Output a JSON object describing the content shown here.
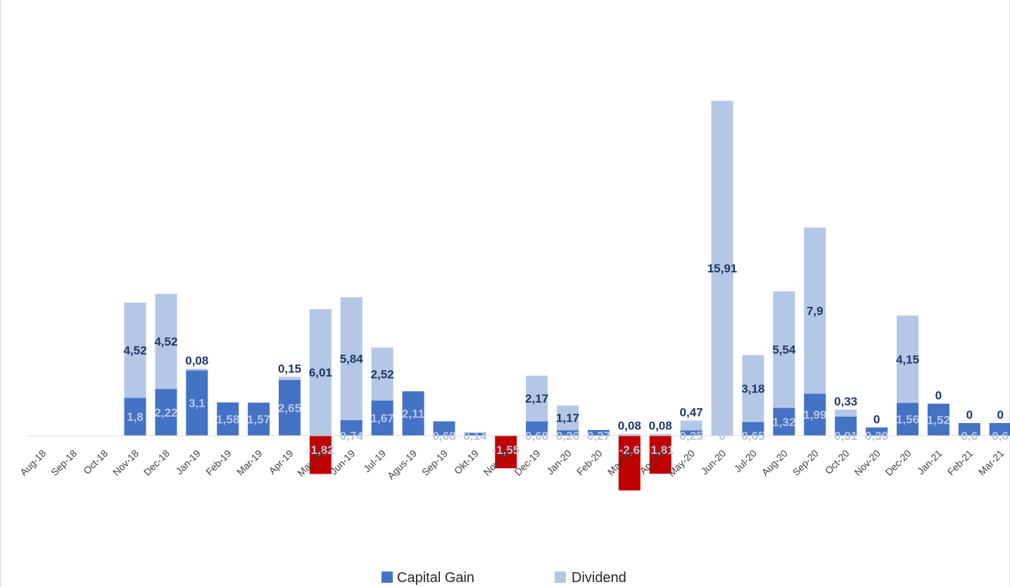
{
  "chart_data": {
    "type": "bar",
    "stacked": true,
    "categories": [
      "Aug-18",
      "Sep-18",
      "Oct-18",
      "Nov-18",
      "Dec-18",
      "Jan-19",
      "Feb-19",
      "Mar-19",
      "Apr-19",
      "May-19",
      "Jun-19",
      "Jul-19",
      "Agus-19",
      "Sep-19",
      "Okt-19",
      "Nov-19",
      "Dec-19",
      "Jan-20",
      "Feb-20",
      "Mar-20",
      "Apr-20",
      "May-20",
      "Jun-20",
      "Jul-20",
      "Aug-20",
      "Sep-20",
      "Oct-20",
      "Nov-20",
      "Dec-20",
      "Jan-21",
      "Feb-21",
      "Mar-21"
    ],
    "series": [
      {
        "name": "Capital Gain",
        "color": "#4472c4",
        "negative_color": "#c00000",
        "values": [
          0,
          0,
          0,
          1.8,
          2.22,
          3.1,
          1.58,
          1.57,
          2.65,
          -1.82,
          0.74,
          1.67,
          2.11,
          0.68,
          0.14,
          -1.55,
          0.68,
          0.26,
          0.27,
          -2.6,
          -1.81,
          0.25,
          0,
          0.65,
          1.32,
          1.99,
          0.91,
          0.39,
          1.56,
          1.52,
          0.6,
          0.6
        ],
        "labels": [
          "",
          "",
          "",
          "1,8",
          "2,22",
          "3,1",
          "1,58",
          "1,57",
          "2,65",
          "-1,82",
          "0,74",
          "1,67",
          "2,11",
          "0,68",
          "0,14",
          "-1,55",
          "0,68",
          "0,26",
          "0,27",
          "-2,6",
          "-1,81",
          "0,25",
          "0",
          "0,65",
          "1,32",
          "1,99",
          "0,91",
          "0,39",
          "1,56",
          "1,52",
          "0,6",
          "0,6"
        ]
      },
      {
        "name": "Dividend",
        "color": "#b4c7e7",
        "values": [
          0,
          0,
          0,
          4.52,
          4.52,
          0.08,
          0,
          0,
          0.15,
          6.01,
          5.84,
          2.52,
          0,
          0,
          0,
          0,
          2.17,
          1.17,
          0,
          0.08,
          0.08,
          0.47,
          15.91,
          3.18,
          5.54,
          7.9,
          0.33,
          0,
          4.15,
          0,
          0,
          0
        ],
        "labels": [
          "",
          "",
          "",
          "4,52",
          "4,52",
          "0,08",
          "",
          "",
          "0,15",
          "6,01",
          "5,84",
          "2,52",
          "",
          "",
          "",
          "",
          "2,17",
          "1,17",
          "",
          "0,08",
          "0,08",
          "0,47",
          "15,91",
          "3,18",
          "5,54",
          "7,9",
          "0,33",
          "0",
          "4,15",
          "0",
          "0",
          "0"
        ]
      }
    ],
    "legend_position": "bottom",
    "grid": false
  }
}
